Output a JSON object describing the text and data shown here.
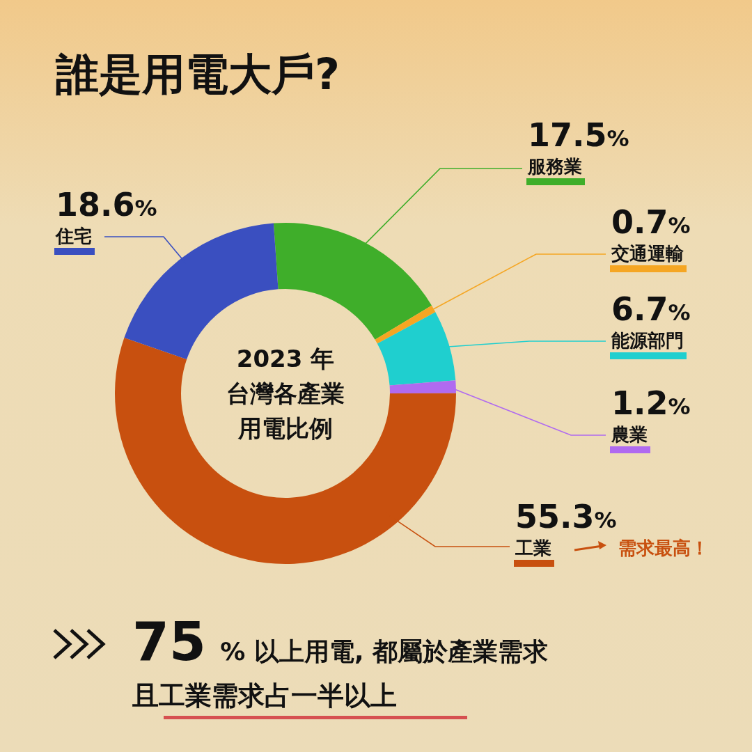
{
  "chart_data": {
    "type": "donut",
    "title": "誰是用電大戶?",
    "subtitle": "2023 年台灣各產業用電比例",
    "categories": [
      "服務業",
      "交通運輸",
      "能源部門",
      "農業",
      "工業",
      "住宅"
    ],
    "values": [
      17.5,
      0.7,
      6.7,
      1.2,
      55.3,
      18.6
    ],
    "value_labels": [
      "17.5%",
      "0.7%",
      "6.7%",
      "1.2%",
      "55.3%",
      "18.6%"
    ],
    "colors": [
      "#3fae2a",
      "#f5a623",
      "#1fcfcf",
      "#b06af0",
      "#c8500f",
      "#3a4fc0"
    ],
    "annotations": [
      "需求最高！",
      "75 % 以上用電, 都屬於產業需求",
      "且工業需求占一半以上"
    ],
    "legend": "right"
  }
}
